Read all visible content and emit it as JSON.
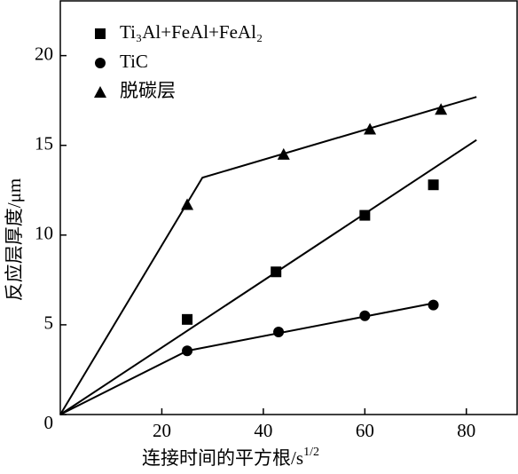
{
  "chart_data": {
    "type": "scatter",
    "xlabel": "连接时间的平方根/s",
    "xlabel_exponent": "1/2",
    "ylabel": "反应层厚度/μm",
    "xlim": [
      0,
      90
    ],
    "ylim": [
      0,
      23
    ],
    "xticks": [
      20,
      40,
      60,
      80
    ],
    "yticks": [
      0,
      5,
      10,
      15,
      20
    ],
    "series": [
      {
        "name": "Ti₃Al+FeAl+FeAl₂",
        "marker": "square",
        "color": "#000000",
        "x": [
          25,
          42.5,
          60,
          73.5
        ],
        "values": [
          5.3,
          7.95,
          11.1,
          12.8
        ],
        "fit_x": [
          0,
          82
        ],
        "fit_values": [
          0,
          15.3
        ]
      },
      {
        "name": "TiC",
        "marker": "circle",
        "color": "#000000",
        "x": [
          25,
          43,
          60,
          73.5
        ],
        "values": [
          3.55,
          4.6,
          5.5,
          6.1
        ],
        "fit_x": [
          0,
          25,
          73.5
        ],
        "fit_values": [
          0,
          3.55,
          6.2
        ]
      },
      {
        "name": "脱碳层",
        "marker": "triangle",
        "color": "#000000",
        "x": [
          25,
          44,
          61,
          75
        ],
        "values": [
          11.7,
          14.5,
          15.9,
          17.0
        ],
        "fit_x": [
          0,
          28,
          82
        ],
        "fit_values": [
          0,
          13.2,
          17.7
        ]
      }
    ]
  }
}
